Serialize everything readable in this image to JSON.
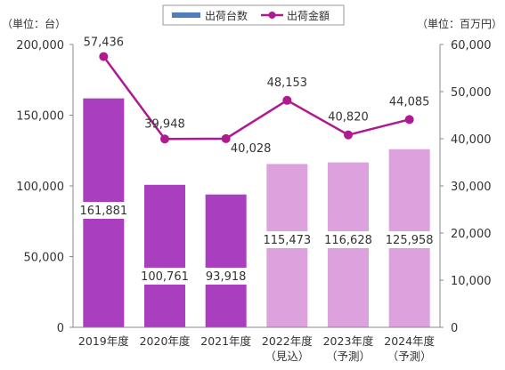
{
  "chart_data": {
    "type": "bar",
    "title": "",
    "categories": [
      {
        "label": "2019年度",
        "sub": ""
      },
      {
        "label": "2020年度",
        "sub": ""
      },
      {
        "label": "2021年度",
        "sub": ""
      },
      {
        "label": "2022年度",
        "sub": "（見込）"
      },
      {
        "label": "2023年度",
        "sub": "（予測）"
      },
      {
        "label": "2024年度",
        "sub": "（予測）"
      }
    ],
    "series": [
      {
        "name": "出荷台数",
        "kind": "bar",
        "axis": "left",
        "values": [
          161881,
          100761,
          93918,
          115473,
          116628,
          125958
        ],
        "labels": [
          "161,881",
          "100,761",
          "93,918",
          "115,473",
          "116,628",
          "125,958"
        ],
        "colors": [
          "#a93fbf",
          "#a93fbf",
          "#a93fbf",
          "#dda1dd",
          "#dda1dd",
          "#dda1dd"
        ]
      },
      {
        "name": "出荷金額",
        "kind": "line",
        "axis": "right",
        "values": [
          57436,
          39948,
          40028,
          48153,
          40820,
          44085
        ],
        "labels": [
          "57,436",
          "39,948",
          "40,028",
          "48,153",
          "40,820",
          "44,085"
        ],
        "color": "#b0198f"
      }
    ],
    "left_axis": {
      "unit_label": "（単位：台）",
      "range": [
        0,
        200000
      ],
      "ticks": [
        0,
        50000,
        100000,
        150000,
        200000
      ],
      "tick_labels": [
        "0",
        "50,000",
        "100,000",
        "150,000",
        "200,000"
      ]
    },
    "right_axis": {
      "unit_label": "（単位：百万円）",
      "range": [
        0,
        60000
      ],
      "ticks": [
        0,
        10000,
        20000,
        30000,
        40000,
        50000,
        60000
      ],
      "tick_labels": [
        "0",
        "10,000",
        "20,000",
        "30,000",
        "40,000",
        "50,000",
        "60,000"
      ]
    },
    "legend": {
      "position": "top-center",
      "items": [
        {
          "label": "出荷台数",
          "kind": "bar",
          "color": "#4f7fb8"
        },
        {
          "label": "出荷金額",
          "kind": "line",
          "color": "#b0198f"
        }
      ]
    },
    "grid": false
  }
}
